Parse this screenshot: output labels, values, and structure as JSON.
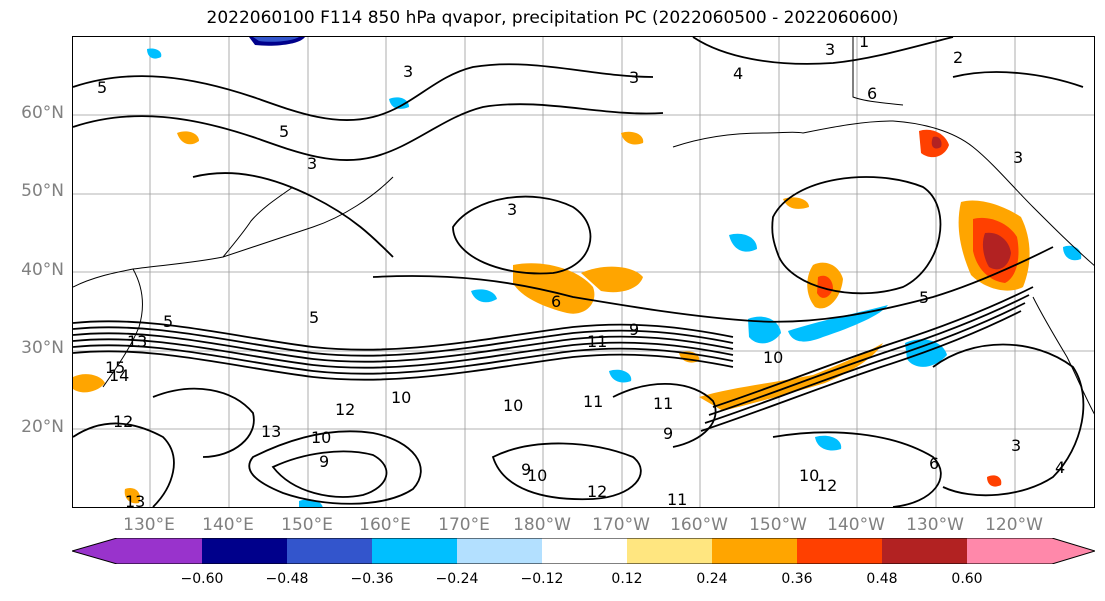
{
  "map": {
    "title": "2022060100 F114 850 hPa qvapor, precipitation PC (2022060500 - 2022060600)",
    "lat_labels": [
      "60°N",
      "50°N",
      "40°N",
      "30°N",
      "20°N"
    ],
    "lon_labels": [
      "130°E",
      "140°E",
      "150°E",
      "160°E",
      "170°E",
      "180°W",
      "170°W",
      "160°W",
      "150°W",
      "140°W",
      "130°W",
      "120°W"
    ],
    "grid": true,
    "contour_color": "#000000",
    "contour_labels": [
      "5",
      "3",
      "3",
      "4",
      "5",
      "3",
      "6",
      "2",
      "1",
      "5",
      "3",
      "3",
      "5",
      "3",
      "6",
      "9",
      "11",
      "10",
      "5",
      "13",
      "15",
      "14",
      "12",
      "13",
      "10",
      "9",
      "12",
      "10",
      "11",
      "10",
      "11",
      "9",
      "10",
      "9",
      "12",
      "11",
      "10",
      "12",
      "3",
      "6",
      "4",
      "13"
    ]
  },
  "colorbar": {
    "tick_labels": [
      "−0.60",
      "−0.48",
      "−0.36",
      "−0.24",
      "−0.12",
      "0.12",
      "0.24",
      "0.36",
      "0.48",
      "0.60"
    ],
    "colors": [
      "#9933cc",
      "#00008b",
      "#3355cc",
      "#00bfff",
      "#b3e0ff",
      "#ffffff",
      "#ffe680",
      "#ffa500",
      "#ff4000",
      "#b22222",
      "#ff88aa"
    ]
  }
}
